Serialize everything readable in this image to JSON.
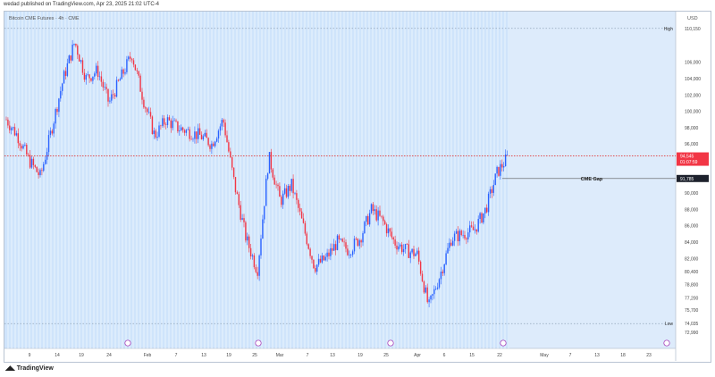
{
  "header": {
    "published": "wedad published on TradingView.com, Apr 23, 2025 21:02 UTC-4"
  },
  "footer": {
    "brand": "TradingView"
  },
  "chart_data": {
    "type": "candlestick",
    "title": "Bitcoin CME Futures · 4h · CME",
    "currency": "USD",
    "ylim": [
      71000,
      112200
    ],
    "y_ticks": [
      {
        "label": "110,150",
        "value": 110150
      },
      {
        "label": "106,000",
        "value": 106000
      },
      {
        "label": "104,000",
        "value": 104000
      },
      {
        "label": "102,000",
        "value": 102000
      },
      {
        "label": "100,000",
        "value": 100000
      },
      {
        "label": "98,000",
        "value": 98000
      },
      {
        "label": "96,000",
        "value": 96000
      },
      {
        "label": "90,000",
        "value": 90000
      },
      {
        "label": "88,000",
        "value": 88000
      },
      {
        "label": "86,000",
        "value": 86000
      },
      {
        "label": "84,000",
        "value": 84000
      },
      {
        "label": "82,000",
        "value": 82000
      },
      {
        "label": "80,400",
        "value": 80400
      },
      {
        "label": "78,800",
        "value": 78800
      },
      {
        "label": "77,200",
        "value": 77200
      },
      {
        "label": "75,700",
        "value": 75700
      },
      {
        "label": "74,035",
        "value": 74035
      },
      {
        "label": "72,990",
        "value": 72990
      }
    ],
    "x_ticks": [
      "9",
      "14",
      "19",
      "24",
      "Feb",
      "7",
      "13",
      "19",
      "25",
      "Mar",
      "7",
      "13",
      "19",
      "25",
      "Apr",
      "6",
      "15",
      "22",
      "May",
      "7",
      "13",
      "18",
      "23"
    ],
    "markers": {
      "high": {
        "label": "High",
        "value": 110150
      },
      "low": {
        "label": "Low",
        "value": 74035
      }
    },
    "current_price": {
      "label": "94,545",
      "countdown": "01:07:59",
      "value": 94545
    },
    "gap": {
      "label": "CME Gap",
      "value": 91785,
      "price_label": "91,785"
    },
    "series": [
      {
        "date": "Jan 6",
        "close": 99000
      },
      {
        "date": "Jan 8",
        "close": 97000
      },
      {
        "date": "Jan 10",
        "close": 94000
      },
      {
        "date": "Jan 13",
        "close": 92000
      },
      {
        "date": "Jan 15",
        "close": 98000
      },
      {
        "date": "Jan 17",
        "close": 104000
      },
      {
        "date": "Jan 20",
        "close": 108500
      },
      {
        "date": "Jan 21",
        "close": 104000
      },
      {
        "date": "Jan 23",
        "close": 105000
      },
      {
        "date": "Jan 25",
        "close": 101000
      },
      {
        "date": "Jan 27",
        "close": 104000
      },
      {
        "date": "Jan 29",
        "close": 107000
      },
      {
        "date": "Jan 31",
        "close": 101500
      },
      {
        "date": "Feb 2",
        "close": 97000
      },
      {
        "date": "Feb 4",
        "close": 99000
      },
      {
        "date": "Feb 7",
        "close": 98000
      },
      {
        "date": "Feb 11",
        "close": 97500
      },
      {
        "date": "Feb 15",
        "close": 97000
      },
      {
        "date": "Feb 19",
        "close": 96000
      },
      {
        "date": "Feb 21",
        "close": 99000
      },
      {
        "date": "Feb 25",
        "close": 91000
      },
      {
        "date": "Feb 27",
        "close": 84500
      },
      {
        "date": "Feb 28",
        "close": 80500
      },
      {
        "date": "Mar 2",
        "close": 94500
      },
      {
        "date": "Mar 4",
        "close": 89000
      },
      {
        "date": "Mar 6",
        "close": 91000
      },
      {
        "date": "Mar 8",
        "close": 86000
      },
      {
        "date": "Mar 10",
        "close": 81000
      },
      {
        "date": "Mar 12",
        "close": 82000
      },
      {
        "date": "Mar 15",
        "close": 84000
      },
      {
        "date": "Mar 18",
        "close": 83000
      },
      {
        "date": "Mar 21",
        "close": 84500
      },
      {
        "date": "Mar 25",
        "close": 88000
      },
      {
        "date": "Mar 28",
        "close": 86500
      },
      {
        "date": "Apr 1",
        "close": 84000
      },
      {
        "date": "Apr 3",
        "close": 83000
      },
      {
        "date": "Apr 5",
        "close": 82500
      },
      {
        "date": "Apr 7",
        "close": 76000
      },
      {
        "date": "Apr 9",
        "close": 80000
      },
      {
        "date": "Apr 11",
        "close": 84500
      },
      {
        "date": "Apr 14",
        "close": 85000
      },
      {
        "date": "Apr 17",
        "close": 85500
      },
      {
        "date": "Apr 20",
        "close": 88000
      },
      {
        "date": "Apr 22",
        "close": 92500
      },
      {
        "date": "Apr 23",
        "close": 94545
      }
    ]
  }
}
